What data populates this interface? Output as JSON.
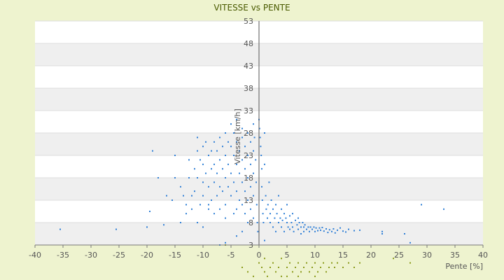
{
  "chart_data": {
    "type": "scatter",
    "title": "VITESSE vs PENTE",
    "xlabel": "Pente [%]",
    "ylabel": "Vitesse [km/h]",
    "xlim": [
      -40,
      40
    ],
    "ylim": [
      3,
      53
    ],
    "x_ticks": [
      "-40",
      "-35",
      "-30",
      "-25",
      "-20",
      "-15",
      "-10",
      "-5",
      "0",
      "5",
      "10",
      "15",
      "20",
      "25",
      "30",
      "35",
      "40"
    ],
    "y_ticks": [
      "53",
      "48",
      "43",
      "38",
      "33",
      "28",
      "23",
      "18",
      "13",
      "8",
      "3"
    ],
    "grid": "horizontal bands",
    "legend": "none",
    "colors": {
      "main": "#2f7fd6",
      "secondary": "#8a9a1a",
      "band": "#efefef"
    },
    "series": [
      {
        "color": "#2f7fd6",
        "points": [
          [
            -35.5,
            6.5
          ],
          [
            -25.5,
            6.5
          ],
          [
            -20,
            7
          ],
          [
            -17,
            7.5
          ],
          [
            -18,
            18
          ],
          [
            -19,
            24
          ],
          [
            -19.5,
            10.5
          ],
          [
            -16.5,
            14
          ],
          [
            -15.5,
            13
          ],
          [
            -15,
            18
          ],
          [
            -15,
            23
          ],
          [
            -14,
            16
          ],
          [
            -13.5,
            14
          ],
          [
            -13,
            12
          ],
          [
            -13,
            10
          ],
          [
            -12.5,
            22
          ],
          [
            -12.5,
            18
          ],
          [
            -12,
            14
          ],
          [
            -12,
            11
          ],
          [
            -11.5,
            20
          ],
          [
            -11.5,
            15
          ],
          [
            -11,
            27
          ],
          [
            -11,
            24
          ],
          [
            -11,
            18
          ],
          [
            -11,
            8
          ],
          [
            -10.5,
            22
          ],
          [
            -10.5,
            12
          ],
          [
            -10,
            25
          ],
          [
            -10,
            21
          ],
          [
            -10,
            17
          ],
          [
            -10,
            14
          ],
          [
            -9.5,
            26
          ],
          [
            -9.5,
            19
          ],
          [
            -9,
            23
          ],
          [
            -9,
            16
          ],
          [
            -9,
            11
          ],
          [
            -8.5,
            24
          ],
          [
            -8.5,
            20
          ],
          [
            -8.5,
            13
          ],
          [
            -8,
            26
          ],
          [
            -8,
            21
          ],
          [
            -8,
            17
          ],
          [
            -8,
            10
          ],
          [
            -7.5,
            24
          ],
          [
            -7.5,
            19
          ],
          [
            -7.5,
            14
          ],
          [
            -7,
            27
          ],
          [
            -7,
            22
          ],
          [
            -7,
            16
          ],
          [
            -7,
            11
          ],
          [
            -6.5,
            25
          ],
          [
            -6.5,
            20
          ],
          [
            -6.5,
            15
          ],
          [
            -6,
            28
          ],
          [
            -6,
            23
          ],
          [
            -6,
            18
          ],
          [
            -6,
            12
          ],
          [
            -6,
            9
          ],
          [
            -5.5,
            26
          ],
          [
            -5.5,
            21
          ],
          [
            -5.5,
            16
          ],
          [
            -5,
            30
          ],
          [
            -5,
            25
          ],
          [
            -5,
            19
          ],
          [
            -5,
            14
          ],
          [
            -4.5,
            28
          ],
          [
            -4.5,
            23
          ],
          [
            -4.5,
            17
          ],
          [
            -4.5,
            10
          ],
          [
            -4,
            31
          ],
          [
            -4,
            26
          ],
          [
            -4,
            21
          ],
          [
            -4,
            15
          ],
          [
            -4,
            11
          ],
          [
            -3.5,
            24
          ],
          [
            -3.5,
            19
          ],
          [
            -3.5,
            13
          ],
          [
            -3,
            29
          ],
          [
            -3,
            27
          ],
          [
            -3,
            22
          ],
          [
            -3,
            17
          ],
          [
            -3,
            12
          ],
          [
            -2.5,
            25
          ],
          [
            -2.5,
            20
          ],
          [
            -2.5,
            15
          ],
          [
            -2.5,
            10
          ],
          [
            -2,
            28
          ],
          [
            -2,
            23
          ],
          [
            -2,
            18
          ],
          [
            -2,
            13
          ],
          [
            -2,
            8
          ],
          [
            -1.5,
            26
          ],
          [
            -1.5,
            21
          ],
          [
            -1.5,
            16
          ],
          [
            -1.5,
            11
          ],
          [
            -1,
            30
          ],
          [
            -1,
            24
          ],
          [
            -1,
            19
          ],
          [
            -1,
            14
          ],
          [
            -1,
            9
          ],
          [
            -0.8,
            27
          ],
          [
            -0.6,
            22
          ],
          [
            -0.5,
            17
          ],
          [
            -0.4,
            12
          ],
          [
            -0.3,
            8
          ],
          [
            -0.2,
            6
          ],
          [
            0,
            31
          ],
          [
            0.1,
            29
          ],
          [
            0.2,
            27
          ],
          [
            0.3,
            25
          ],
          [
            0.4,
            23
          ],
          [
            0.5,
            20
          ],
          [
            0.5,
            16
          ],
          [
            0.6,
            13
          ],
          [
            0.7,
            10
          ],
          [
            0.8,
            8
          ],
          [
            1,
            28
          ],
          [
            1,
            21
          ],
          [
            1.2,
            14
          ],
          [
            1.3,
            11
          ],
          [
            1.5,
            9
          ],
          [
            1.6,
            12
          ],
          [
            1.8,
            17
          ],
          [
            2,
            10
          ],
          [
            2,
            8
          ],
          [
            2.2,
            13
          ],
          [
            2.5,
            11
          ],
          [
            2.5,
            7
          ],
          [
            2.8,
            9
          ],
          [
            3,
            12
          ],
          [
            3,
            6
          ],
          [
            3.2,
            10
          ],
          [
            3.5,
            8
          ],
          [
            3.5,
            14
          ],
          [
            3.8,
            9
          ],
          [
            4,
            11
          ],
          [
            4,
            7
          ],
          [
            4.2,
            8.5
          ],
          [
            4.5,
            10
          ],
          [
            4.5,
            6
          ],
          [
            4.8,
            9
          ],
          [
            5,
            8
          ],
          [
            5,
            12
          ],
          [
            5.2,
            7
          ],
          [
            5.5,
            9.5
          ],
          [
            5.5,
            6.5
          ],
          [
            5.8,
            8
          ],
          [
            6,
            7
          ],
          [
            6,
            10
          ],
          [
            6.2,
            6
          ],
          [
            6.5,
            8.5
          ],
          [
            6.8,
            7.5
          ],
          [
            7,
            6.5
          ],
          [
            7,
            9
          ],
          [
            7.2,
            8
          ],
          [
            7.5,
            7
          ],
          [
            7.5,
            5.5
          ],
          [
            7.8,
            8
          ],
          [
            8,
            7
          ],
          [
            8,
            6
          ],
          [
            8.2,
            7.5
          ],
          [
            8.5,
            6.5
          ],
          [
            8.8,
            7
          ],
          [
            9,
            6
          ],
          [
            9.2,
            7
          ],
          [
            9.5,
            6.5
          ],
          [
            9.8,
            7
          ],
          [
            10,
            6
          ],
          [
            10.2,
            6.8
          ],
          [
            10.5,
            6.2
          ],
          [
            10.8,
            6.8
          ],
          [
            11,
            6.3
          ],
          [
            11.3,
            6.9
          ],
          [
            11.6,
            6.1
          ],
          [
            12,
            6.6
          ],
          [
            12.3,
            5.8
          ],
          [
            12.6,
            6.4
          ],
          [
            13,
            6
          ],
          [
            13.3,
            6.6
          ],
          [
            13.6,
            5.7
          ],
          [
            14,
            6.3
          ],
          [
            14.5,
            6.8
          ],
          [
            15,
            6.1
          ],
          [
            15.5,
            5.9
          ],
          [
            16,
            6.5
          ],
          [
            17,
            6.2
          ],
          [
            18,
            6.3
          ],
          [
            22,
            6
          ],
          [
            22,
            5.5
          ],
          [
            26,
            5.5
          ],
          [
            27,
            3.5
          ],
          [
            29,
            12
          ],
          [
            33,
            11
          ],
          [
            -3,
            6
          ],
          [
            -6,
            3.5
          ],
          [
            -7,
            3
          ],
          [
            -10,
            7
          ],
          [
            -14,
            8
          ],
          [
            -9,
            12
          ],
          [
            -4,
            5
          ],
          [
            1,
            4
          ]
        ]
      },
      {
        "color": "#8a9a1a",
        "points": [
          [
            -6,
            3
          ],
          [
            -2,
            -3
          ],
          [
            0,
            -1
          ],
          [
            0.5,
            -2
          ],
          [
            1,
            -3
          ],
          [
            1,
            0
          ],
          [
            1.5,
            -4
          ],
          [
            2,
            -2
          ],
          [
            2,
            -6
          ],
          [
            2.5,
            -1
          ],
          [
            3,
            -3
          ],
          [
            3,
            -5
          ],
          [
            3.5,
            -2
          ],
          [
            4,
            -4
          ],
          [
            4,
            0
          ],
          [
            4.5,
            -6
          ],
          [
            5,
            -2
          ],
          [
            5,
            -4
          ],
          [
            5.5,
            -1
          ],
          [
            6,
            -3
          ],
          [
            6,
            -5
          ],
          [
            6.5,
            -2
          ],
          [
            7,
            -4
          ],
          [
            7,
            -1
          ],
          [
            7.5,
            -3
          ],
          [
            8,
            -2
          ],
          [
            8,
            -5
          ],
          [
            8.5,
            -1
          ],
          [
            9,
            -3
          ],
          [
            9.5,
            -2
          ],
          [
            10,
            -4
          ],
          [
            10,
            -1
          ],
          [
            10.5,
            -3
          ],
          [
            11,
            -2
          ],
          [
            11.5,
            -1
          ],
          [
            12,
            -3
          ],
          [
            12.5,
            -2
          ],
          [
            13,
            -1
          ],
          [
            13.5,
            -2
          ],
          [
            14,
            -1
          ],
          [
            15,
            -2
          ],
          [
            16,
            -1
          ],
          [
            17,
            -2
          ],
          [
            18,
            -1
          ],
          [
            24,
            0
          ],
          [
            27,
            -1
          ],
          [
            -1,
            -6
          ],
          [
            1,
            -7
          ],
          [
            3,
            -8
          ],
          [
            5,
            -9
          ],
          [
            6,
            -7
          ],
          [
            8,
            -6
          ],
          [
            4,
            -10
          ],
          [
            7,
            -9
          ],
          [
            9,
            -6
          ],
          [
            2,
            -5
          ],
          [
            -3,
            -2
          ],
          [
            -1,
            -4
          ]
        ]
      }
    ]
  }
}
